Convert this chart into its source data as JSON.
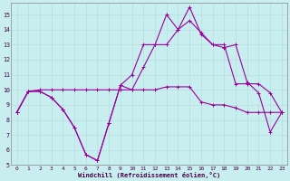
{
  "xlabel": "Windchill (Refroidissement éolien,°C)",
  "ylabel": "",
  "background_color": "#c8eef0",
  "grid_color": "#b8dfe0",
  "line_color": "#990099",
  "x_hours": [
    0,
    1,
    2,
    3,
    4,
    5,
    6,
    7,
    8,
    9,
    10,
    11,
    12,
    13,
    14,
    15,
    16,
    17,
    18,
    19,
    20,
    21,
    22,
    23
  ],
  "series1": [
    8.5,
    9.9,
    9.9,
    9.5,
    8.7,
    7.5,
    5.7,
    5.3,
    7.8,
    10.3,
    10.0,
    10.0,
    10.0,
    10.2,
    10.2,
    10.2,
    9.2,
    9.0,
    9.0,
    8.8,
    8.5,
    8.5,
    8.5,
    8.5
  ],
  "series2": [
    8.5,
    9.9,
    9.9,
    9.5,
    8.7,
    7.5,
    5.7,
    5.3,
    7.8,
    10.3,
    11.0,
    13.0,
    13.0,
    13.0,
    14.0,
    14.6,
    13.8,
    13.0,
    12.8,
    13.0,
    10.5,
    9.8,
    7.2,
    8.5
  ],
  "series3": [
    8.5,
    9.9,
    10.0,
    10.0,
    10.0,
    10.0,
    10.0,
    10.0,
    10.0,
    10.0,
    10.0,
    11.5,
    13.0,
    15.0,
    14.0,
    15.5,
    13.7,
    13.0,
    13.0,
    10.4,
    10.4,
    10.4,
    9.8,
    8.5
  ],
  "xlim": [
    -0.5,
    23.5
  ],
  "ylim": [
    5,
    15.8
  ],
  "yticks": [
    5,
    6,
    7,
    8,
    9,
    10,
    11,
    12,
    13,
    14,
    15
  ],
  "xtick_labels": [
    "0",
    "1",
    "2",
    "3",
    "4",
    "5",
    "6",
    "7",
    "8",
    "9",
    "10",
    "11",
    "12",
    "13",
    "14",
    "15",
    "16",
    "17",
    "18",
    "19",
    "20",
    "21",
    "22",
    "23"
  ],
  "xticks": [
    0,
    1,
    2,
    3,
    4,
    5,
    6,
    7,
    8,
    9,
    10,
    11,
    12,
    13,
    14,
    15,
    16,
    17,
    18,
    19,
    20,
    21,
    22,
    23
  ]
}
